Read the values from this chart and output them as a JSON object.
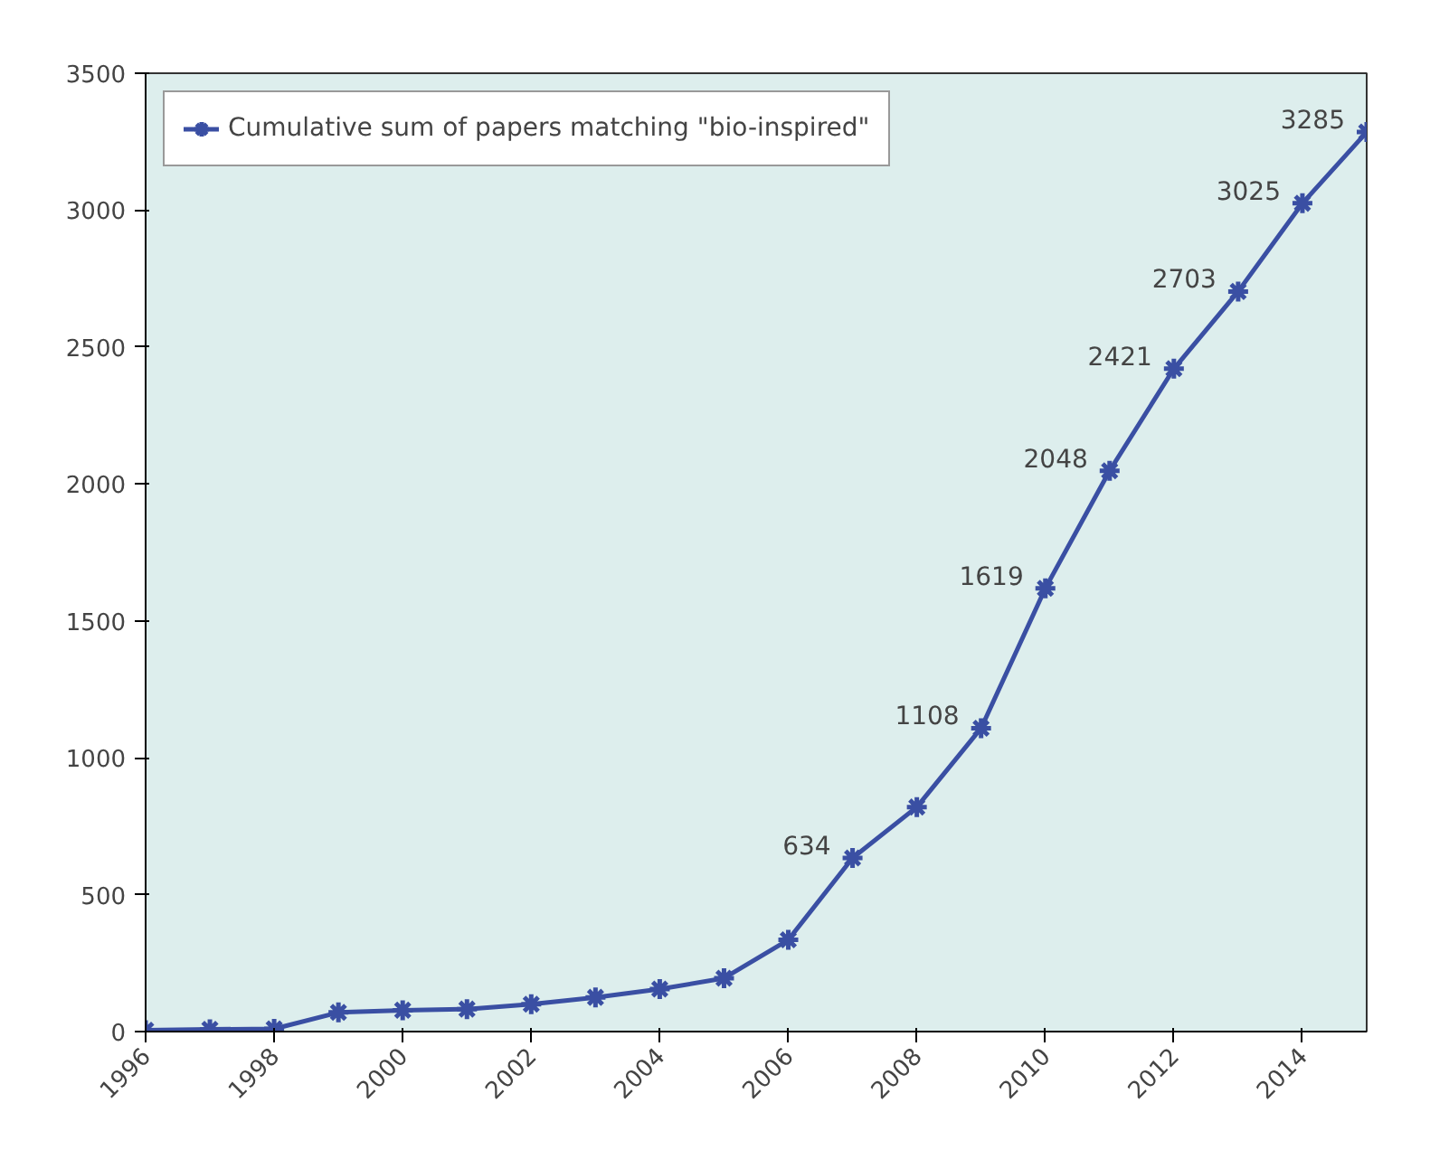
{
  "chart_data": {
    "type": "line",
    "x": [
      1996,
      1997,
      1998,
      1999,
      2000,
      2001,
      2002,
      2003,
      2004,
      2005,
      2006,
      2007,
      2008,
      2009,
      2010,
      2011,
      2012,
      2013,
      2014,
      2015
    ],
    "series": [
      {
        "name": "Cumulative sum of papers matching \"bio-inspired\"",
        "color": "#3a4fa3",
        "values": [
          5,
          8,
          10,
          70,
          78,
          82,
          100,
          125,
          155,
          195,
          335,
          634,
          820,
          1108,
          1619,
          2048,
          2421,
          2703,
          3025,
          3285
        ],
        "value_labels": [
          null,
          null,
          null,
          null,
          null,
          null,
          null,
          null,
          null,
          null,
          null,
          "634",
          null,
          "1108",
          "1619",
          "2048",
          "2421",
          "2703",
          "3025",
          "3285"
        ]
      }
    ],
    "xlim": [
      1996,
      2015
    ],
    "xticks": [
      1996,
      1998,
      2000,
      2002,
      2004,
      2006,
      2008,
      2010,
      2012,
      2014
    ],
    "ylim": [
      0,
      3500
    ],
    "yticks": [
      0,
      500,
      1000,
      1500,
      2000,
      2500,
      3000,
      3500
    ],
    "grid": false,
    "legend": "top left",
    "marker": "cross",
    "line_style": "solid"
  }
}
